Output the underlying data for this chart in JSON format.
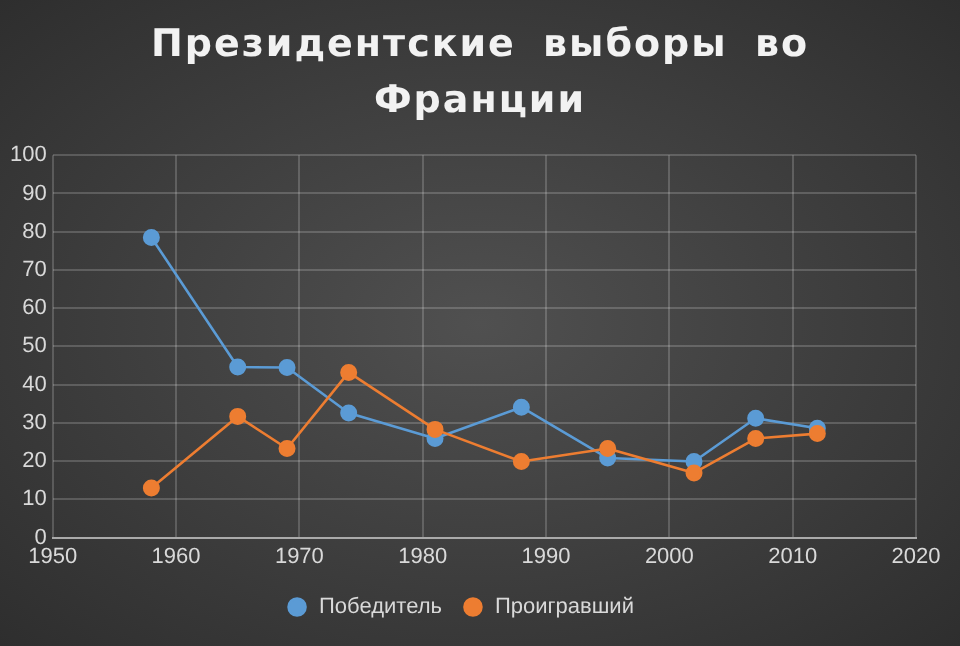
{
  "chart_data": {
    "type": "line",
    "title": "Президентские выборы во Франции",
    "x": [
      1958,
      1965,
      1969,
      1974,
      1981,
      1988,
      1995,
      2002,
      2007,
      2012
    ],
    "series": [
      {
        "name": "Победитель",
        "color": "#5b9bd5",
        "values": [
          78.5,
          44.6,
          44.5,
          32.6,
          25.9,
          34.1,
          20.8,
          19.9,
          31.2,
          28.6
        ]
      },
      {
        "name": "Проигравший",
        "color": "#ed7d31",
        "values": [
          13,
          31.7,
          23.3,
          43.2,
          28.3,
          19.9,
          23.3,
          16.9,
          25.9,
          27.2
        ]
      }
    ],
    "xlim": [
      1950,
      2020
    ],
    "xticks": [
      1950,
      1960,
      1970,
      1980,
      1990,
      2000,
      2010,
      2020
    ],
    "ylim": [
      0,
      100
    ],
    "yticks": [
      0,
      10,
      20,
      30,
      40,
      50,
      60,
      70,
      80,
      90,
      100
    ],
    "grid": true,
    "legend": "bottom",
    "marker": "circle",
    "line_style": "solid"
  }
}
